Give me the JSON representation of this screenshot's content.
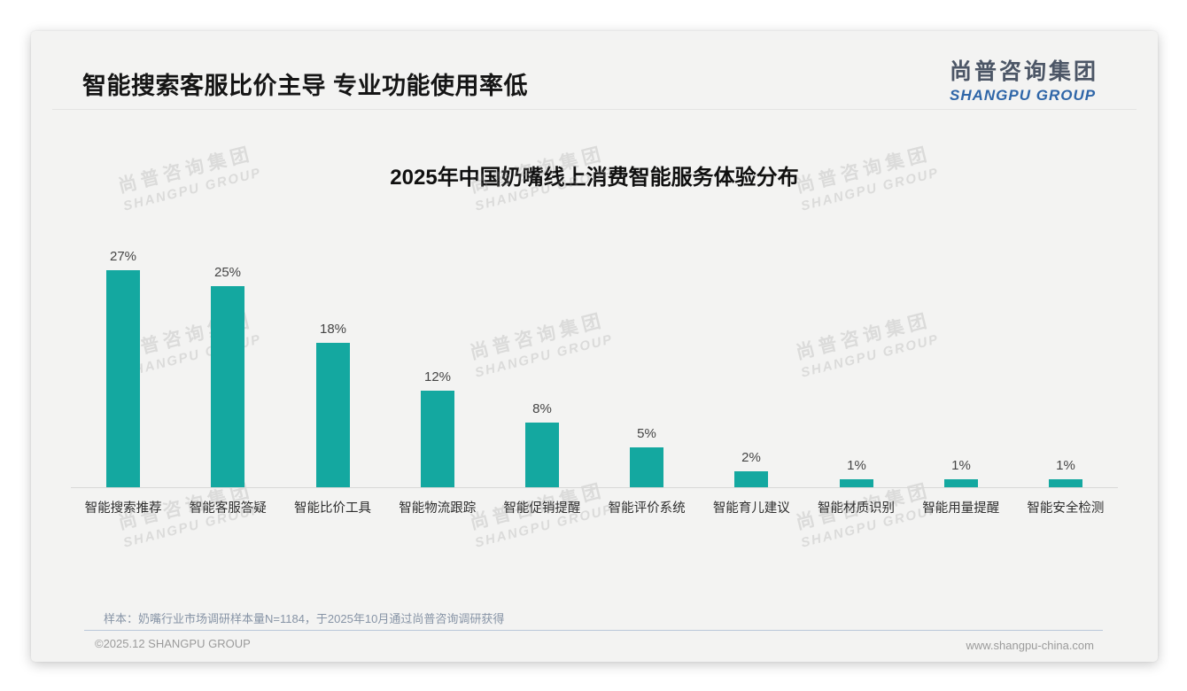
{
  "page": {
    "title": "智能搜索客服比价主导 专业功能使用率低",
    "logo": {
      "cn": "尚普咨询集团",
      "en": "SHANGPU GROUP"
    },
    "watermark": {
      "cn": "尚普咨询集团",
      "en": "SHANGPU GROUP"
    },
    "footnote": "样本：奶嘴行业市场调研样本量N=1184，于2025年10月通过尚普咨询调研获得",
    "copyright": "©2025.12 SHANGPU GROUP",
    "website": "www.shangpu-china.com"
  },
  "colors": {
    "bar": "#14a8a0",
    "logo_blue": "#2f66a8",
    "card_background": "#f3f3f2"
  },
  "chart_data": {
    "type": "bar",
    "title": "2025年中国奶嘴线上消费智能服务体验分布",
    "categories": [
      "智能搜索推荐",
      "智能客服答疑",
      "智能比价工具",
      "智能物流跟踪",
      "智能促销提醒",
      "智能评价系统",
      "智能育儿建议",
      "智能材质识别",
      "智能用量提醒",
      "智能安全检测"
    ],
    "values": [
      27,
      25,
      18,
      12,
      8,
      5,
      2,
      1,
      1,
      1
    ],
    "unit": "%",
    "bar_color": "#14a8a0",
    "value_labels": [
      "27%",
      "25%",
      "18%",
      "12%",
      "8%",
      "5%",
      "2%",
      "1%",
      "1%",
      "1%"
    ],
    "xlabel": "",
    "ylabel": "",
    "ylim": [
      0,
      30
    ],
    "grid": false,
    "legend": "none"
  }
}
